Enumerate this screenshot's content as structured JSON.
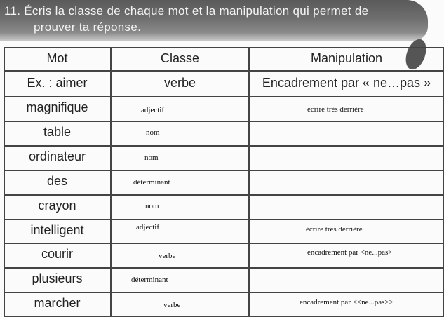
{
  "instruction": {
    "line1": "11. Écris la classe de chaque mot et la manipulation qui permet de",
    "line2": "prouver ta réponse."
  },
  "table": {
    "headers": [
      "Mot",
      "Classe",
      "Manipulation"
    ],
    "example": {
      "mot": "Ex. : aimer",
      "classe": "verbe",
      "manipulation": "Encadrement par « ne…pas »"
    },
    "rows": [
      {
        "mot": "magnifique",
        "classe": "adjectif",
        "manipulation": "écrire très derrière"
      },
      {
        "mot": "table",
        "classe": "nom",
        "manipulation": ""
      },
      {
        "mot": "ordinateur",
        "classe": "nom",
        "manipulation": ""
      },
      {
        "mot": "des",
        "classe": "déterminant",
        "manipulation": ""
      },
      {
        "mot": "crayon",
        "classe": "nom",
        "manipulation": ""
      },
      {
        "mot": "intelligent",
        "classe": "adjectif",
        "manipulation": "écrire très derrière"
      },
      {
        "mot": "courir",
        "classe": "verbe",
        "manipulation": "encadrement par <ne...pas>"
      },
      {
        "mot": "plusieurs",
        "classe": "déterminant",
        "manipulation": ""
      },
      {
        "mot": "marcher",
        "classe": "verbe",
        "manipulation": "encadrement par <<ne...pas>>"
      }
    ]
  }
}
